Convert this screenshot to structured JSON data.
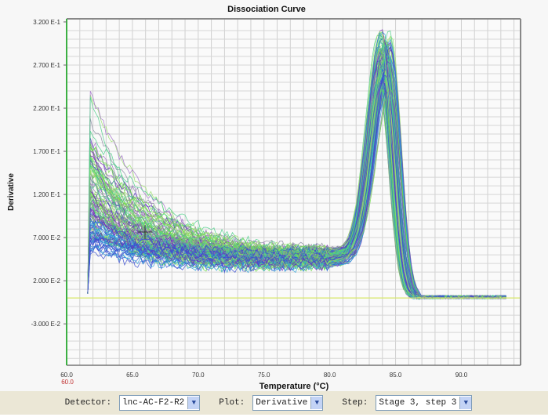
{
  "chart_data": {
    "type": "line",
    "title": "Dissociation Curve",
    "xlabel": "Temperature (°C)",
    "ylabel": "Derivative",
    "xlim": [
      60.0,
      94.5
    ],
    "ylim": [
      -0.078,
      0.3236
    ],
    "x_ticks": [
      60,
      65,
      70,
      75,
      80,
      85,
      90
    ],
    "x_tick_labels": [
      "60.0",
      "65.0",
      "70.0",
      "75.0",
      "80.0",
      "85.0",
      "90.0"
    ],
    "x_marker_label": "60.0",
    "y_ticks": [
      0.32,
      0.27,
      0.22,
      0.17,
      0.12,
      0.07,
      0.02,
      -0.03
    ],
    "y_tick_labels": [
      "3.200 E-1",
      "2.700 E-1",
      "2.200 E-1",
      "1.700 E-1",
      "1.200 E-1",
      "7.000 E-2",
      "2.000 E-2",
      "-3.000 E-2"
    ],
    "grid": true,
    "series_summary": {
      "count": 120,
      "x_start": 61.6,
      "x_end": 93.5,
      "initial_peak_range": [
        0.06,
        0.255
      ],
      "baseline_at_80": [
        0.035,
        0.055
      ],
      "melt_peak_tm_range": [
        83.7,
        84.7
      ],
      "melt_peak_height_range": [
        0.24,
        0.315
      ]
    },
    "series_colors": [
      "#7b2fb5",
      "#5a3fc0",
      "#3b4fd0",
      "#2a9fd6",
      "#6fdc4a",
      "#9ae06a",
      "#8a8aa0",
      "#a070c8",
      "#4ccf8a"
    ]
  },
  "toolbar": {
    "detector_label": "Detector:",
    "detector_value": "lnc-AC-F2-R2",
    "plot_label": "Plot:",
    "plot_value": "Derivative",
    "step_label": "Step:",
    "step_value": "Stage 3, step 3",
    "arrow": "▼"
  }
}
